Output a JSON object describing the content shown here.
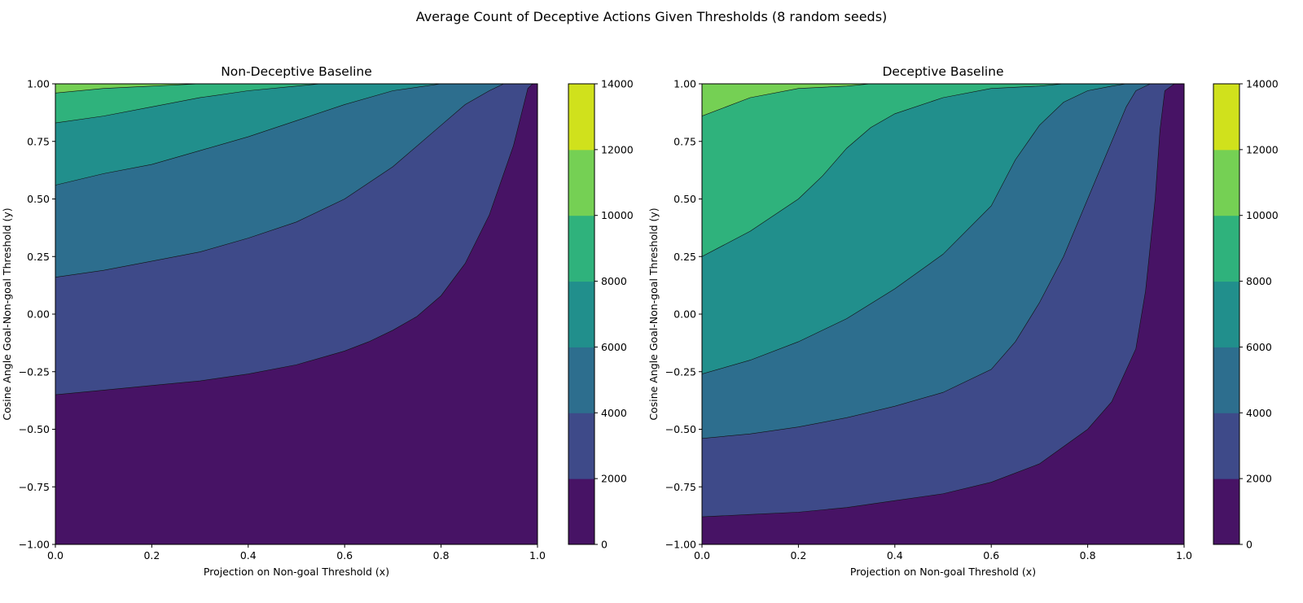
{
  "figure": {
    "suptitle": "Average Count of Deceptive Actions Given Thresholds (8 random seeds)"
  },
  "levels": [
    0,
    2000,
    4000,
    6000,
    8000,
    10000,
    12000,
    14000
  ],
  "level_colors": [
    "#471365",
    "#3e4a89",
    "#2d6e8e",
    "#218f8c",
    "#2fb27c",
    "#75d054",
    "#d0e11c"
  ],
  "chart_data": [
    {
      "type": "contour",
      "title": "Non-Deceptive Baseline",
      "xlabel": "Projection on Non-goal Threshold (x)",
      "ylabel": "Cosine Angle Goal-Non-goal Threshold (y)",
      "xlim": [
        0,
        1
      ],
      "ylim": [
        -1,
        1
      ],
      "x_ticks": [
        "0.0",
        "0.2",
        "0.4",
        "0.6",
        "0.8",
        "1.0"
      ],
      "y_ticks": [
        "−1.00",
        "−0.75",
        "−0.50",
        "−0.25",
        "0.00",
        "0.25",
        "0.50",
        "0.75",
        "1.00"
      ],
      "colorbar_ticks": [
        "0",
        "2000",
        "4000",
        "6000",
        "8000",
        "10000",
        "12000",
        "14000"
      ],
      "contour_lines": [
        {
          "level": 2000,
          "points": [
            [
              0,
              -0.35
            ],
            [
              0.1,
              -0.33
            ],
            [
              0.2,
              -0.31
            ],
            [
              0.3,
              -0.29
            ],
            [
              0.4,
              -0.26
            ],
            [
              0.5,
              -0.22
            ],
            [
              0.6,
              -0.16
            ],
            [
              0.65,
              -0.12
            ],
            [
              0.7,
              -0.07
            ],
            [
              0.75,
              -0.01
            ],
            [
              0.8,
              0.08
            ],
            [
              0.85,
              0.22
            ],
            [
              0.9,
              0.43
            ],
            [
              0.95,
              0.73
            ],
            [
              0.98,
              0.98
            ],
            [
              0.99,
              1.0
            ]
          ]
        },
        {
          "level": 4000,
          "points": [
            [
              0,
              0.16
            ],
            [
              0.1,
              0.19
            ],
            [
              0.2,
              0.23
            ],
            [
              0.3,
              0.27
            ],
            [
              0.4,
              0.33
            ],
            [
              0.5,
              0.4
            ],
            [
              0.6,
              0.5
            ],
            [
              0.7,
              0.64
            ],
            [
              0.8,
              0.82
            ],
            [
              0.85,
              0.91
            ],
            [
              0.9,
              0.97
            ],
            [
              0.93,
              1.0
            ]
          ]
        },
        {
          "level": 6000,
          "points": [
            [
              0,
              0.56
            ],
            [
              0.1,
              0.61
            ],
            [
              0.2,
              0.65
            ],
            [
              0.3,
              0.71
            ],
            [
              0.4,
              0.77
            ],
            [
              0.5,
              0.84
            ],
            [
              0.6,
              0.91
            ],
            [
              0.7,
              0.97
            ],
            [
              0.8,
              1.0
            ]
          ]
        },
        {
          "level": 8000,
          "points": [
            [
              0,
              0.83
            ],
            [
              0.1,
              0.86
            ],
            [
              0.2,
              0.9
            ],
            [
              0.3,
              0.94
            ],
            [
              0.4,
              0.97
            ],
            [
              0.5,
              0.99
            ],
            [
              0.55,
              1.0
            ]
          ]
        },
        {
          "level": 10000,
          "points": [
            [
              0,
              0.96
            ],
            [
              0.1,
              0.98
            ],
            [
              0.2,
              0.99
            ],
            [
              0.3,
              1.0
            ]
          ]
        }
      ]
    },
    {
      "type": "contour",
      "title": "Deceptive Baseline",
      "xlabel": "Projection on Non-goal Threshold (x)",
      "ylabel": "Cosine Angle Goal-Non-goal Threshold (y)",
      "xlim": [
        0,
        1
      ],
      "ylim": [
        -1,
        1
      ],
      "x_ticks": [
        "0.0",
        "0.2",
        "0.4",
        "0.6",
        "0.8",
        "1.0"
      ],
      "y_ticks": [
        "−1.00",
        "−0.75",
        "−0.50",
        "−0.25",
        "0.00",
        "0.25",
        "0.50",
        "0.75",
        "1.00"
      ],
      "colorbar_ticks": [
        "0",
        "2000",
        "4000",
        "6000",
        "8000",
        "10000",
        "12000",
        "14000"
      ],
      "contour_lines": [
        {
          "level": 2000,
          "points": [
            [
              0,
              -0.88
            ],
            [
              0.1,
              -0.87
            ],
            [
              0.2,
              -0.86
            ],
            [
              0.3,
              -0.84
            ],
            [
              0.4,
              -0.81
            ],
            [
              0.5,
              -0.78
            ],
            [
              0.6,
              -0.73
            ],
            [
              0.7,
              -0.65
            ],
            [
              0.8,
              -0.5
            ],
            [
              0.85,
              -0.38
            ],
            [
              0.9,
              -0.15
            ],
            [
              0.92,
              0.1
            ],
            [
              0.94,
              0.5
            ],
            [
              0.95,
              0.8
            ],
            [
              0.96,
              0.97
            ],
            [
              0.98,
              1.0
            ]
          ]
        },
        {
          "level": 4000,
          "points": [
            [
              0,
              -0.54
            ],
            [
              0.1,
              -0.52
            ],
            [
              0.2,
              -0.49
            ],
            [
              0.3,
              -0.45
            ],
            [
              0.4,
              -0.4
            ],
            [
              0.5,
              -0.34
            ],
            [
              0.6,
              -0.24
            ],
            [
              0.65,
              -0.12
            ],
            [
              0.7,
              0.05
            ],
            [
              0.75,
              0.25
            ],
            [
              0.8,
              0.5
            ],
            [
              0.85,
              0.75
            ],
            [
              0.88,
              0.9
            ],
            [
              0.9,
              0.97
            ],
            [
              0.93,
              1.0
            ]
          ]
        },
        {
          "level": 6000,
          "points": [
            [
              0,
              -0.26
            ],
            [
              0.1,
              -0.2
            ],
            [
              0.2,
              -0.12
            ],
            [
              0.3,
              -0.02
            ],
            [
              0.4,
              0.11
            ],
            [
              0.5,
              0.26
            ],
            [
              0.6,
              0.47
            ],
            [
              0.65,
              0.67
            ],
            [
              0.7,
              0.82
            ],
            [
              0.75,
              0.92
            ],
            [
              0.8,
              0.97
            ],
            [
              0.85,
              0.99
            ],
            [
              0.88,
              1.0
            ]
          ]
        },
        {
          "level": 8000,
          "points": [
            [
              0,
              0.25
            ],
            [
              0.1,
              0.36
            ],
            [
              0.2,
              0.5
            ],
            [
              0.25,
              0.6
            ],
            [
              0.3,
              0.72
            ],
            [
              0.35,
              0.81
            ],
            [
              0.4,
              0.87
            ],
            [
              0.5,
              0.94
            ],
            [
              0.6,
              0.98
            ],
            [
              0.7,
              0.99
            ],
            [
              0.75,
              1.0
            ]
          ]
        },
        {
          "level": 10000,
          "points": [
            [
              0,
              0.86
            ],
            [
              0.05,
              0.9
            ],
            [
              0.1,
              0.94
            ],
            [
              0.2,
              0.98
            ],
            [
              0.3,
              0.99
            ],
            [
              0.35,
              1.0
            ]
          ]
        }
      ]
    }
  ]
}
